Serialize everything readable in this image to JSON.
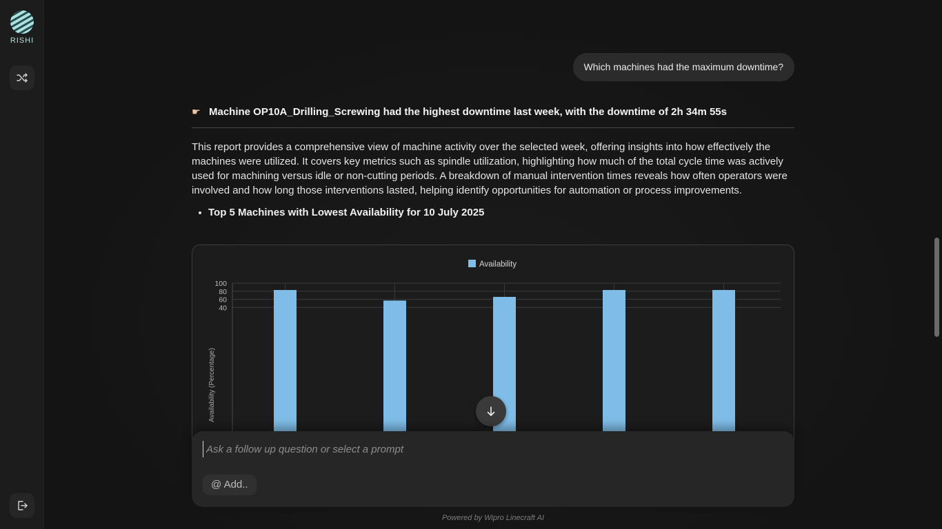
{
  "app": {
    "name": "RISHI",
    "footer": "Powered by Wipro Linecraft AI"
  },
  "sidebar": {
    "items": [
      {
        "name": "shuffle-icon"
      },
      {
        "name": "logout-icon"
      }
    ]
  },
  "conversation": {
    "user_message": "Which machines had the maximum downtime?",
    "answer": {
      "headline": "Machine OP10A_Drilling_Screwing had the highest downtime last week, with the downtime of 2h 34m 55s",
      "headline_icon": "pointing-hand-icon",
      "paragraph": "This report provides a comprehensive view of machine activity over the selected week, offering insights into how effectively the machines were utilized. It covers key metrics such as spindle utilization, highlighting how much of the total cycle time was actively used for machining versus idle or non-cutting periods. A breakdown of manual intervention times reveals how often operators were involved and how long those interventions lasted, helping identify opportunities for automation or process improvements.",
      "bullet": "Top 5 Machines with Lowest Availability for 10 July 2025"
    }
  },
  "chart_data": {
    "type": "bar",
    "categories": [
      "",
      "",
      "",
      "",
      ""
    ],
    "series": [
      {
        "name": "Availability",
        "values": [
          83,
          57,
          66,
          83,
          83
        ],
        "color": "#7fbde8"
      }
    ],
    "ylabel": "Availability (Percentage)",
    "y_ticks": [
      "100",
      "80",
      "60",
      "40"
    ],
    "ylim": [
      0,
      100
    ],
    "visible_ylim": [
      40,
      100
    ],
    "grid": true,
    "legend": "top-center"
  },
  "composer": {
    "placeholder": "Ask a follow up question or select a prompt",
    "add_label": "@ Add.."
  },
  "colors": {
    "accent": "#7fbde8",
    "background": "#151515",
    "surface": "#262626"
  }
}
